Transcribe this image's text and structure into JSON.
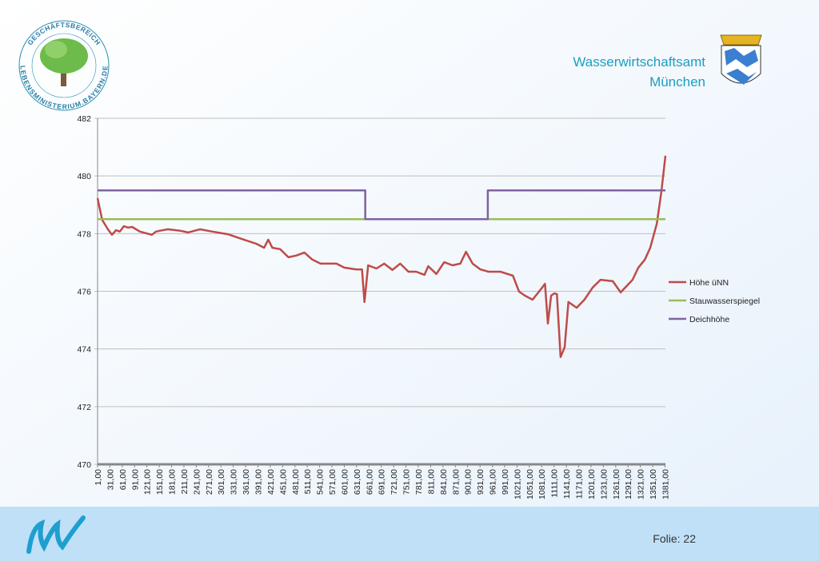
{
  "header": {
    "org_line1": "Wasserwirtschaftsamt",
    "org_line2": "München",
    "logo_ring_top": "GESCHÄFTSBEREICH",
    "logo_ring_bottom": "LEBENSMINISTERIUM.BAYERN.DE"
  },
  "footer": {
    "slide": "Folie: 22"
  },
  "chart_data": {
    "type": "line",
    "xlim": [
      1,
      1382
    ],
    "ylim": [
      470,
      482
    ],
    "yticks": [
      470,
      472,
      474,
      476,
      478,
      480,
      482
    ],
    "xticks": [
      {
        "value": 1,
        "label": "1,00"
      },
      {
        "value": 31,
        "label": "31,00"
      },
      {
        "value": 61,
        "label": "61,00"
      },
      {
        "value": 91,
        "label": "91,00"
      },
      {
        "value": 121,
        "label": "121,00"
      },
      {
        "value": 151,
        "label": "151,00"
      },
      {
        "value": 181,
        "label": "181,00"
      },
      {
        "value": 211,
        "label": "211,00"
      },
      {
        "value": 241,
        "label": "241,00"
      },
      {
        "value": 271,
        "label": "271,00"
      },
      {
        "value": 301,
        "label": "301,00"
      },
      {
        "value": 331,
        "label": "331,00"
      },
      {
        "value": 361,
        "label": "361,00"
      },
      {
        "value": 391,
        "label": "391,00"
      },
      {
        "value": 421,
        "label": "421,00"
      },
      {
        "value": 451,
        "label": "451,00"
      },
      {
        "value": 481,
        "label": "481,00"
      },
      {
        "value": 511,
        "label": "511,00"
      },
      {
        "value": 541,
        "label": "541,00"
      },
      {
        "value": 571,
        "label": "571,00"
      },
      {
        "value": 601,
        "label": "601,00"
      },
      {
        "value": 631,
        "label": "631,00"
      },
      {
        "value": 661,
        "label": "661,00"
      },
      {
        "value": 691,
        "label": "691,00"
      },
      {
        "value": 721,
        "label": "721,00"
      },
      {
        "value": 751,
        "label": "751,00"
      },
      {
        "value": 781,
        "label": "781,00"
      },
      {
        "value": 811,
        "label": "811,00"
      },
      {
        "value": 841,
        "label": "841,00"
      },
      {
        "value": 871,
        "label": "871,00"
      },
      {
        "value": 901,
        "label": "901,00"
      },
      {
        "value": 931,
        "label": "931,00"
      },
      {
        "value": 961,
        "label": "961,00"
      },
      {
        "value": 991,
        "label": "991,00"
      },
      {
        "value": 1021,
        "label": "1021,00"
      },
      {
        "value": 1051,
        "label": "1051,00"
      },
      {
        "value": 1081,
        "label": "1081,00"
      },
      {
        "value": 1111,
        "label": "1111,00"
      },
      {
        "value": 1141,
        "label": "1141,00"
      },
      {
        "value": 1171,
        "label": "1171,00"
      },
      {
        "value": 1201,
        "label": "1201,00"
      },
      {
        "value": 1231,
        "label": "1231,00"
      },
      {
        "value": 1261,
        "label": "1261,00"
      },
      {
        "value": 1291,
        "label": "1291,00"
      },
      {
        "value": 1321,
        "label": "1321,00"
      },
      {
        "value": 1351,
        "label": "1351,00"
      },
      {
        "value": 1381,
        "label": "1381,00"
      }
    ],
    "legend": "right",
    "series": [
      {
        "name": "Höhe üNN",
        "color": "#be4b48",
        "x": [
          1,
          12,
          26,
          36,
          46,
          55,
          65,
          75,
          85,
          104,
          133,
          143,
          153,
          172,
          202,
          221,
          250,
          280,
          318,
          357,
          387,
          406,
          416,
          426,
          445,
          465,
          484,
          504,
          523,
          543,
          582,
          601,
          630,
          644,
          650,
          659,
          679,
          698,
          718,
          737,
          757,
          776,
          796,
          805,
          825,
          844,
          864,
          883,
          897,
          913,
          932,
          952,
          981,
          1011,
          1026,
          1040,
          1059,
          1079,
          1089,
          1096,
          1104,
          1112,
          1118,
          1127,
          1137,
          1146,
          1166,
          1185,
          1205,
          1224,
          1254,
          1273,
          1302,
          1316,
          1332,
          1345,
          1361,
          1372,
          1382
        ],
        "values": [
          479.23,
          478.48,
          478.15,
          477.96,
          478.12,
          478.07,
          478.26,
          478.21,
          478.23,
          478.07,
          477.96,
          478.07,
          478.1,
          478.15,
          478.1,
          478.04,
          478.15,
          478.07,
          477.98,
          477.79,
          477.65,
          477.51,
          477.79,
          477.51,
          477.46,
          477.18,
          477.24,
          477.34,
          477.1,
          476.96,
          476.96,
          476.82,
          476.76,
          476.76,
          475.63,
          476.9,
          476.79,
          476.96,
          476.74,
          476.96,
          476.68,
          476.68,
          476.57,
          476.87,
          476.6,
          477.01,
          476.9,
          476.96,
          477.37,
          476.96,
          476.76,
          476.68,
          476.68,
          476.54,
          475.99,
          475.85,
          475.71,
          476.07,
          476.26,
          474.88,
          475.85,
          475.93,
          475.9,
          473.72,
          474.06,
          475.63,
          475.43,
          475.71,
          476.13,
          476.4,
          476.35,
          475.96,
          476.4,
          476.82,
          477.1,
          477.51,
          478.34,
          479.45,
          480.7
        ]
      },
      {
        "name": "Stauwasserspiegel",
        "color": "#9bbb59",
        "x": [
          1,
          1382
        ],
        "values": [
          478.5,
          478.5
        ]
      },
      {
        "name": "Deichhöhe",
        "color": "#7f63a2",
        "x": [
          1,
          652,
          652,
          950,
          950,
          1382
        ],
        "values": [
          479.5,
          479.5,
          478.5,
          478.5,
          479.5,
          479.5
        ]
      }
    ]
  }
}
